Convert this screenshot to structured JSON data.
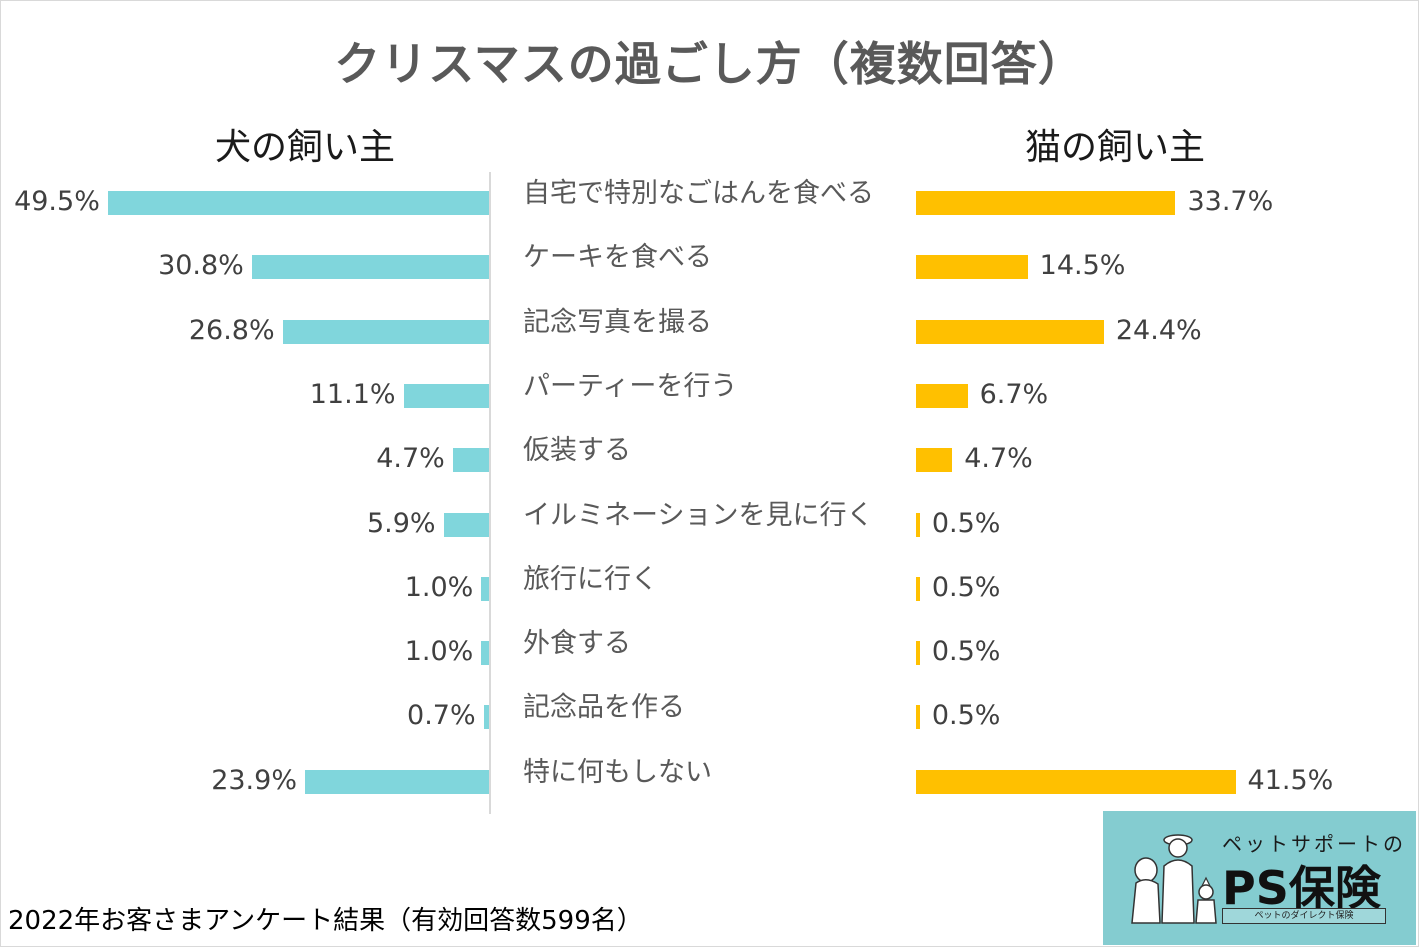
{
  "title": "クリスマスの過ごし方（複数回答）",
  "dog_title": "犬の飼い主",
  "cat_title": "猫の飼い主",
  "footnote": "2022年お客さまアンケート結果（有効回答数599名）",
  "logo": {
    "subtitle": "ペットサポートの",
    "name": "PS保険",
    "tagline": "ペットのダイレクト保険"
  },
  "colors": {
    "dog": "#80d6dc",
    "cat": "#ffc000"
  },
  "chart_data": {
    "type": "bar",
    "categories": [
      "自宅で特別なごはんを食べる",
      "ケーキを食べる",
      "記念写真を撮る",
      "パーティーを行う",
      "仮装する",
      "イルミネーションを見に行く",
      "旅行に行く",
      "外食する",
      "記念品を作る",
      "特に何もしない"
    ],
    "series": [
      {
        "name": "犬の飼い主",
        "values": [
          49.5,
          30.8,
          26.8,
          11.1,
          4.7,
          5.9,
          1.0,
          1.0,
          0.7,
          23.9
        ]
      },
      {
        "name": "猫の飼い主",
        "values": [
          33.7,
          14.5,
          24.4,
          6.7,
          4.7,
          0.5,
          0.5,
          0.5,
          0.5,
          41.5
        ]
      }
    ],
    "value_labels": {
      "dog": [
        "49.5%",
        "30.8%",
        "26.8%",
        "11.1%",
        "4.7%",
        "5.9%",
        "1.0%",
        "1.0%",
        "0.7%",
        "23.9%"
      ],
      "cat": [
        "33.7%",
        "14.5%",
        "24.4%",
        "6.7%",
        "4.7%",
        "0.5%",
        "0.5%",
        "0.5%",
        "0.5%",
        "41.5%"
      ]
    },
    "xlabel": "",
    "ylabel": "",
    "grid": false,
    "legend": "none"
  }
}
